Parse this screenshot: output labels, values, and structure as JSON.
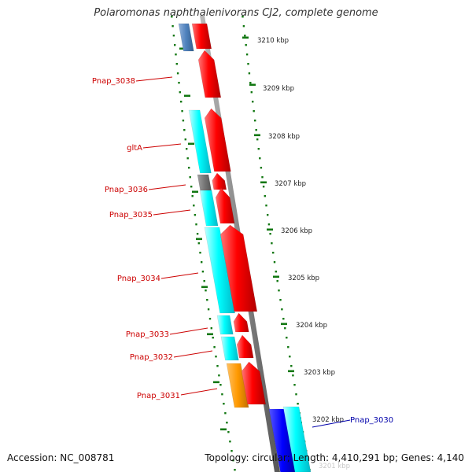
{
  "header": {
    "title": "Polaromonas naphthalenivorans CJ2, complete genome"
  },
  "footer": {
    "accession": "Accession: NC_008781",
    "topology": "Topology: circular; Length: 4,410,291 bp; Genes: 4,140"
  },
  "colors": {
    "cds_forward": "#ff0000",
    "cds_reverse_cyan": "#00ffff",
    "cds_reverse_blue": "#0000ff",
    "cds_steelblue": "#4f81bd",
    "cds_gray": "#777777",
    "cds_orange": "#ff9900",
    "backbone": "#888888",
    "tick_green": "#117711",
    "label_red": "#cc0000",
    "label_blue": "#0000aa"
  },
  "scale_ticks": [
    "3210 kbp",
    "3209 kbp",
    "3208 kbp",
    "3207 kbp",
    "3206 kbp",
    "3205 kbp",
    "3204 kbp",
    "3203 kbp",
    "3202 kbp",
    "3201 kbp"
  ],
  "gene_labels": [
    {
      "name": "Pnap_3038",
      "color": "red"
    },
    {
      "name": "gltA",
      "color": "red"
    },
    {
      "name": "Pnap_3036",
      "color": "red"
    },
    {
      "name": "Pnap_3035",
      "color": "red"
    },
    {
      "name": "Pnap_3034",
      "color": "red"
    },
    {
      "name": "Pnap_3033",
      "color": "red"
    },
    {
      "name": "Pnap_3032",
      "color": "red"
    },
    {
      "name": "Pnap_3031",
      "color": "red"
    },
    {
      "name": "Pnap_3030",
      "color": "blue"
    }
  ]
}
